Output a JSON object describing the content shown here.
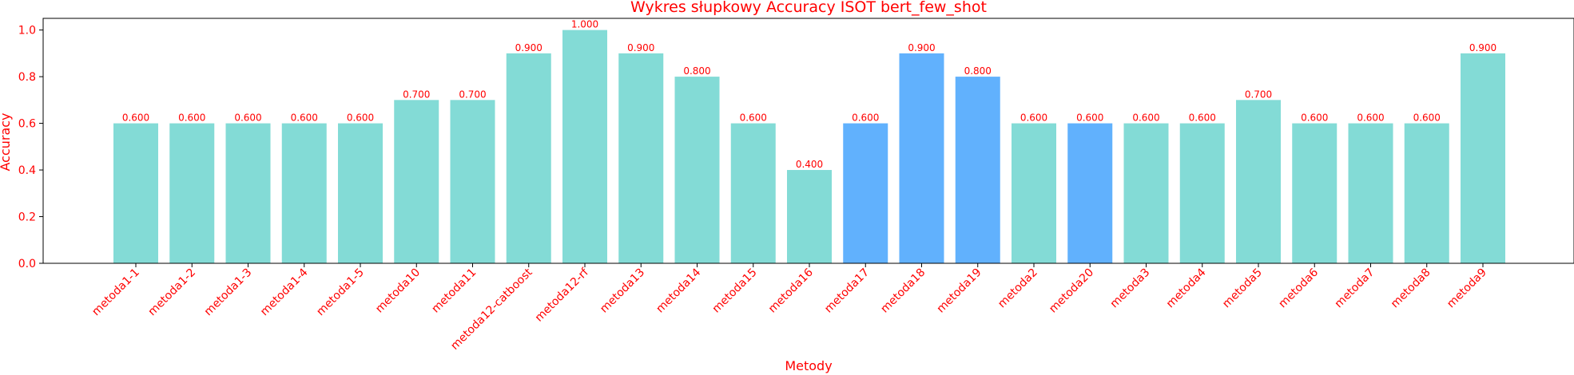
{
  "colors": {
    "text": "#ff0000",
    "bar_default": "#83dbd6",
    "bar_highlight": "#61b1fd",
    "axis": "#000000"
  },
  "chart_data": {
    "type": "bar",
    "title": "Wykres słupkowy Accuracy ISOT bert_few_shot",
    "xlabel": "Metody",
    "ylabel": "Accuracy",
    "ylim": [
      0,
      1.05
    ],
    "yticks": [
      0.0,
      0.2,
      0.4,
      0.6,
      0.8,
      1.0
    ],
    "ytick_labels": [
      "0.0",
      "0.2",
      "0.4",
      "0.6",
      "0.8",
      "1.0"
    ],
    "grid": false,
    "categories": [
      "metoda1-1",
      "metoda1-2",
      "metoda1-3",
      "metoda1-4",
      "metoda1-5",
      "metoda10",
      "metoda11",
      "metoda12-catboost",
      "metoda12-rf",
      "metoda13",
      "metoda14",
      "metoda15",
      "metoda16",
      "metoda17",
      "metoda18",
      "metoda19",
      "metoda2",
      "metoda20",
      "metoda3",
      "metoda4",
      "metoda5",
      "metoda6",
      "metoda7",
      "metoda8",
      "metoda9"
    ],
    "values": [
      0.6,
      0.6,
      0.6,
      0.6,
      0.6,
      0.7,
      0.7,
      0.9,
      1.0,
      0.9,
      0.8,
      0.6,
      0.4,
      0.6,
      0.9,
      0.8,
      0.6,
      0.6,
      0.6,
      0.6,
      0.7,
      0.6,
      0.6,
      0.6,
      0.9
    ],
    "value_labels": [
      "0.600",
      "0.600",
      "0.600",
      "0.600",
      "0.600",
      "0.700",
      "0.700",
      "0.900",
      "1.000",
      "0.900",
      "0.800",
      "0.600",
      "0.400",
      "0.600",
      "0.900",
      "0.800",
      "0.600",
      "0.600",
      "0.600",
      "0.600",
      "0.700",
      "0.600",
      "0.600",
      "0.600",
      "0.900"
    ],
    "highlighted": [
      "metoda17",
      "metoda18",
      "metoda19",
      "metoda20"
    ]
  }
}
